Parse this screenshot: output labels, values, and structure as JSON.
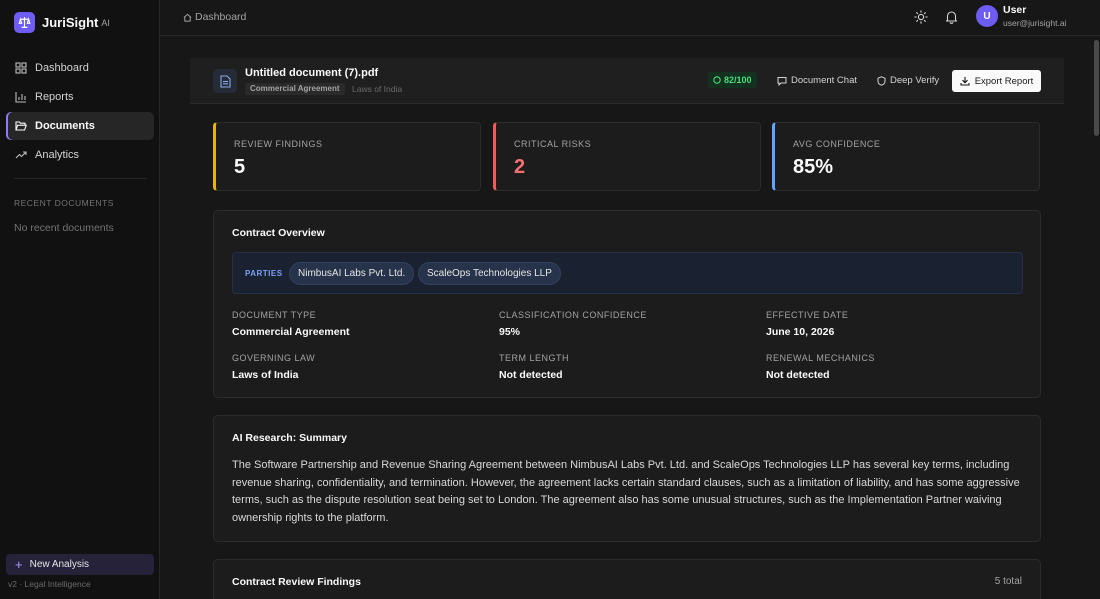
{
  "brand": {
    "name": "JuriSight",
    "suffix": "AI"
  },
  "sidebar": {
    "items": [
      {
        "label": "Dashboard",
        "icon": "grid-icon"
      },
      {
        "label": "Reports",
        "icon": "bar-chart-icon"
      },
      {
        "label": "Documents",
        "icon": "folder-open-icon",
        "active": true
      },
      {
        "label": "Analytics",
        "icon": "trend-up-icon"
      }
    ],
    "recent_title": "RECENT DOCUMENTS",
    "recent_empty": "No recent documents",
    "new_analysis": "New Analysis",
    "version": "v2 · Legal Intelligence"
  },
  "topbar": {
    "breadcrumb": "Dashboard",
    "user": {
      "initial": "U",
      "name": "User",
      "email": "user@jurisight.ai"
    }
  },
  "document": {
    "title": "Untitled document (7).pdf",
    "tag": "Commercial Agreement",
    "law": "Laws of India",
    "score": "82/100",
    "chat_label": "Document Chat",
    "verify_label": "Deep Verify",
    "export_label": "Export Report"
  },
  "stats": [
    {
      "label": "REVIEW FINDINGS",
      "value": "5",
      "accent": "#eab308",
      "color": "#fafafa"
    },
    {
      "label": "CRITICAL RISKS",
      "value": "2",
      "accent": "#ef5a5a",
      "color": "#f87171"
    },
    {
      "label": "AVG CONFIDENCE",
      "value": "85%",
      "accent": "#60a5fa",
      "color": "#fafafa"
    }
  ],
  "overview": {
    "title": "Contract Overview",
    "parties_label": "PARTIES",
    "parties": [
      "NimbusAI Labs Pvt. Ltd.",
      "ScaleOps Technologies LLP"
    ],
    "fields": [
      {
        "label": "DOCUMENT TYPE",
        "value": "Commercial Agreement"
      },
      {
        "label": "CLASSIFICATION CONFIDENCE",
        "value": "95%"
      },
      {
        "label": "EFFECTIVE DATE",
        "value": "June 10, 2026"
      },
      {
        "label": "GOVERNING LAW",
        "value": "Laws of India"
      },
      {
        "label": "TERM LENGTH",
        "value": "Not detected"
      },
      {
        "label": "RENEWAL MECHANICS",
        "value": "Not detected"
      }
    ]
  },
  "research": {
    "title": "AI Research: Summary",
    "text": "The Software Partnership and Revenue Sharing Agreement between NimbusAI Labs Pvt. Ltd. and ScaleOps Technologies LLP has several key terms, including revenue sharing, confidentiality, and termination. However, the agreement lacks certain standard clauses, such as a limitation of liability, and has some aggressive terms, such as the dispute resolution seat being set to London. The agreement also has some unusual structures, such as the Implementation Partner waiving ownership rights to the platform."
  },
  "findings": {
    "title": "Contract Review Findings",
    "count": "5 total"
  }
}
